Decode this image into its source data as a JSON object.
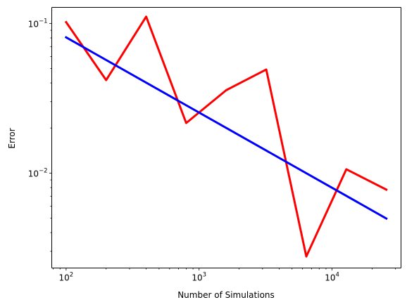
{
  "chart_data": {
    "type": "line",
    "title": "",
    "xlabel": "Number of Simulations",
    "ylabel": "Error",
    "xscale": "log",
    "yscale": "log",
    "xlim": [
      78,
      33000
    ],
    "ylim": [
      0.00232,
      0.128
    ],
    "grid": false,
    "legend": "none",
    "x_major_ticks": [
      {
        "value": 100,
        "base": "10",
        "exp": "2"
      },
      {
        "value": 1000,
        "base": "10",
        "exp": "3"
      },
      {
        "value": 10000,
        "base": "10",
        "exp": "4"
      }
    ],
    "y_major_ticks": [
      {
        "value": 0.01,
        "base": "10",
        "exp": "−2"
      },
      {
        "value": 0.1,
        "base": "10",
        "exp": "−1"
      }
    ],
    "series": [
      {
        "color": "#ff0000",
        "x": [
          100,
          200,
          400,
          800,
          1600,
          3200,
          6400,
          12800,
          25600
        ],
        "y": [
          0.102,
          0.0418,
          0.111,
          0.0216,
          0.0358,
          0.0492,
          0.00277,
          0.0106,
          0.00775
        ]
      },
      {
        "color": "#0000ff",
        "x": [
          100,
          25600
        ],
        "y": [
          0.0807,
          0.00497
        ]
      }
    ]
  }
}
